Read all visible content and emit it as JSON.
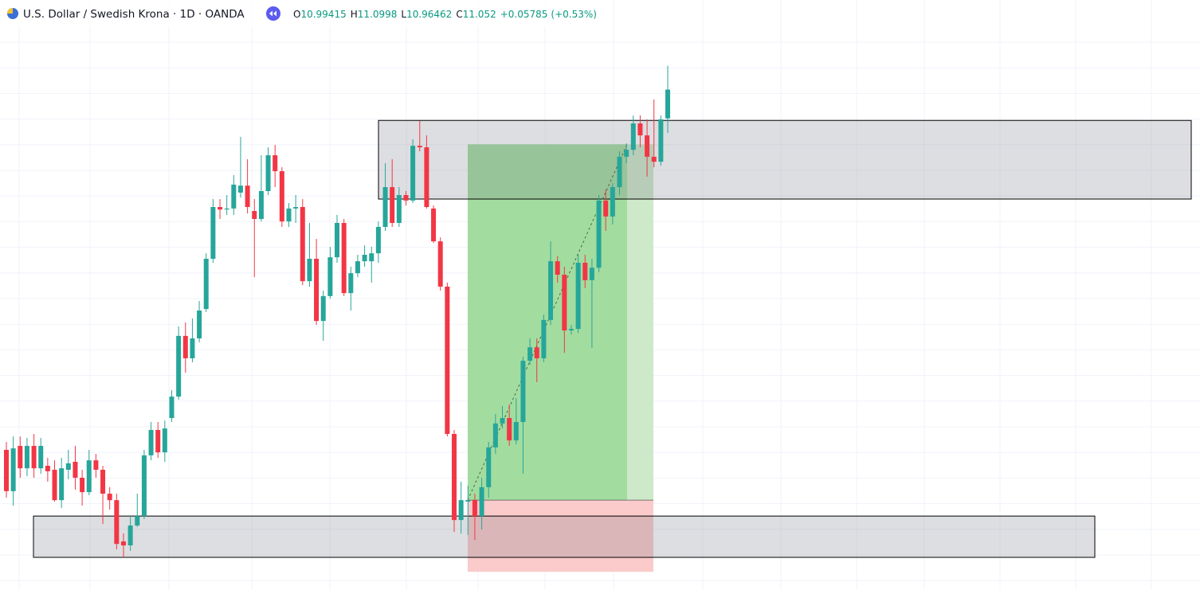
{
  "header": {
    "symbol": "U.S. Dollar / Swedish Krona · 1D · OANDA",
    "ohlc_labels": [
      "O",
      "H",
      "L",
      "C"
    ],
    "change": "+0.05785",
    "change_pct": "(+0.53%)"
  },
  "chart_data": {
    "type": "candlestick",
    "up_color": "#26a69a",
    "down_color": "#f23645",
    "grid": true,
    "ylim": [
      10.0464,
      11.232
    ],
    "open": [
      10.328,
      10.245,
      10.336,
      10.291,
      10.336,
      10.291,
      10.296,
      10.288,
      10.227,
      10.288,
      10.304,
      10.272,
      10.243,
      10.307,
      10.288,
      10.24,
      10.227,
      10.144,
      10.136,
      10.176,
      10.195,
      10.317,
      10.368,
      10.323,
      10.392,
      10.435,
      10.557,
      10.512,
      10.552,
      10.611,
      10.712,
      10.816,
      10.811,
      10.813,
      10.845,
      10.859,
      10.808,
      10.792,
      10.848,
      10.92,
      10.888,
      10.787,
      10.813,
      10.816,
      10.667,
      10.712,
      10.587,
      10.637,
      10.715,
      10.784,
      10.643,
      10.683,
      10.707,
      10.707,
      10.723,
      10.776,
      10.856,
      10.784,
      10.84,
      10.829,
      10.939,
      10.936,
      10.813,
      10.747,
      10.656,
      10.36,
      10.187,
      10.224,
      10.227,
      10.195,
      10.253,
      10.333,
      10.381,
      10.392,
      10.347,
      10.384,
      10.507,
      10.534,
      10.512,
      10.589,
      10.707,
      10.68,
      10.568,
      10.571,
      10.704,
      10.669,
      10.694,
      10.829,
      10.797,
      10.856,
      10.917,
      10.931,
      10.984,
      10.96,
      10.917,
      10.907,
      10.99415
    ],
    "high": [
      10.344,
      10.355,
      10.355,
      10.352,
      10.36,
      10.352,
      10.312,
      10.307,
      10.312,
      10.328,
      10.336,
      10.288,
      10.328,
      10.32,
      10.296,
      10.253,
      10.24,
      10.16,
      10.195,
      10.24,
      10.328,
      10.384,
      10.384,
      10.387,
      10.448,
      10.576,
      10.584,
      10.592,
      10.627,
      10.723,
      10.832,
      10.832,
      10.84,
      10.88,
      10.957,
      10.912,
      10.832,
      10.92,
      10.936,
      10.941,
      10.896,
      10.824,
      10.84,
      10.832,
      10.784,
      10.752,
      10.648,
      10.736,
      10.8,
      10.792,
      10.696,
      10.72,
      10.739,
      10.736,
      10.787,
      10.904,
      10.912,
      10.856,
      10.848,
      10.952,
      10.989,
      10.96,
      10.819,
      10.755,
      10.664,
      10.368,
      10.264,
      10.256,
      10.24,
      10.272,
      10.344,
      10.4,
      10.416,
      10.419,
      10.432,
      10.515,
      10.552,
      10.552,
      10.6,
      10.747,
      10.717,
      10.696,
      10.579,
      10.72,
      10.72,
      10.712,
      10.84,
      10.851,
      10.864,
      10.928,
      10.944,
      11.0,
      11.0,
      10.992,
      11.032,
      11.0,
      11.0998
    ],
    "low": [
      10.232,
      10.216,
      10.272,
      10.275,
      10.272,
      10.28,
      10.264,
      10.224,
      10.211,
      10.269,
      10.248,
      10.216,
      10.237,
      10.272,
      10.179,
      10.208,
      10.128,
      10.112,
      10.125,
      10.173,
      10.189,
      10.307,
      10.312,
      10.304,
      10.384,
      10.429,
      10.483,
      10.504,
      10.544,
      10.605,
      10.704,
      10.792,
      10.8,
      10.8,
      10.835,
      10.803,
      10.675,
      10.787,
      10.84,
      10.856,
      10.776,
      10.776,
      10.784,
      10.659,
      10.656,
      10.579,
      10.547,
      10.632,
      10.704,
      10.637,
      10.608,
      10.675,
      10.696,
      10.664,
      10.704,
      10.768,
      10.776,
      10.776,
      10.819,
      10.824,
      10.928,
      10.813,
      10.744,
      10.648,
      10.355,
      10.163,
      10.16,
      10.157,
      10.147,
      10.168,
      10.232,
      10.32,
      10.371,
      10.336,
      10.339,
      10.28,
      10.499,
      10.464,
      10.504,
      10.579,
      10.664,
      10.523,
      10.56,
      10.563,
      10.653,
      10.533,
      10.685,
      10.768,
      10.781,
      10.84,
      10.904,
      10.92,
      10.936,
      10.877,
      10.896,
      10.899,
      10.96462
    ],
    "close": [
      10.245,
      10.331,
      10.291,
      10.336,
      10.291,
      10.336,
      10.285,
      10.227,
      10.291,
      10.301,
      10.272,
      10.243,
      10.307,
      10.288,
      10.24,
      10.227,
      10.139,
      10.136,
      10.176,
      10.195,
      10.317,
      10.368,
      10.323,
      10.371,
      10.435,
      10.557,
      10.512,
      10.552,
      10.608,
      10.712,
      10.816,
      10.811,
      10.813,
      10.861,
      10.859,
      10.816,
      10.792,
      10.848,
      10.92,
      10.888,
      10.787,
      10.813,
      10.816,
      10.667,
      10.712,
      10.587,
      10.637,
      10.715,
      10.784,
      10.643,
      10.683,
      10.707,
      10.72,
      10.723,
      10.776,
      10.856,
      10.784,
      10.84,
      10.829,
      10.939,
      10.936,
      10.816,
      10.747,
      10.656,
      10.36,
      10.187,
      10.227,
      10.227,
      10.195,
      10.253,
      10.333,
      10.381,
      10.392,
      10.347,
      10.384,
      10.507,
      10.534,
      10.512,
      10.589,
      10.707,
      10.68,
      10.568,
      10.571,
      10.704,
      10.669,
      10.694,
      10.829,
      10.797,
      10.856,
      10.917,
      10.931,
      10.984,
      10.96,
      10.917,
      10.907,
      10.992,
      11.052
    ],
    "zones": [
      {
        "top": 10.99,
        "bottom": 10.832
      },
      {
        "top": 10.195,
        "bottom": 10.112
      }
    ],
    "position": {
      "target": 10.942,
      "entry": 10.227,
      "stop": 10.083
    }
  }
}
